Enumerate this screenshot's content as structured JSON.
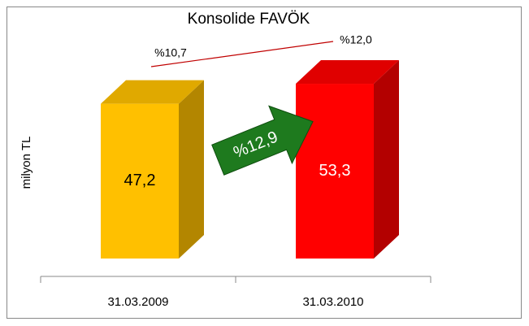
{
  "chart_data": {
    "type": "bar3d",
    "title": "Konsolide FAVÖK",
    "y_label": "milyon TL",
    "categories": [
      "31.03.2009",
      "31.03.2010"
    ],
    "values": [
      47.2,
      53.3
    ],
    "value_labels": [
      "47,2",
      "53,3"
    ],
    "colors": [
      "#ffc000",
      "#ff0000"
    ],
    "ylim": [
      0,
      60
    ],
    "annotations": [
      "%10,7",
      "%12,0",
      "%12,9"
    ]
  }
}
